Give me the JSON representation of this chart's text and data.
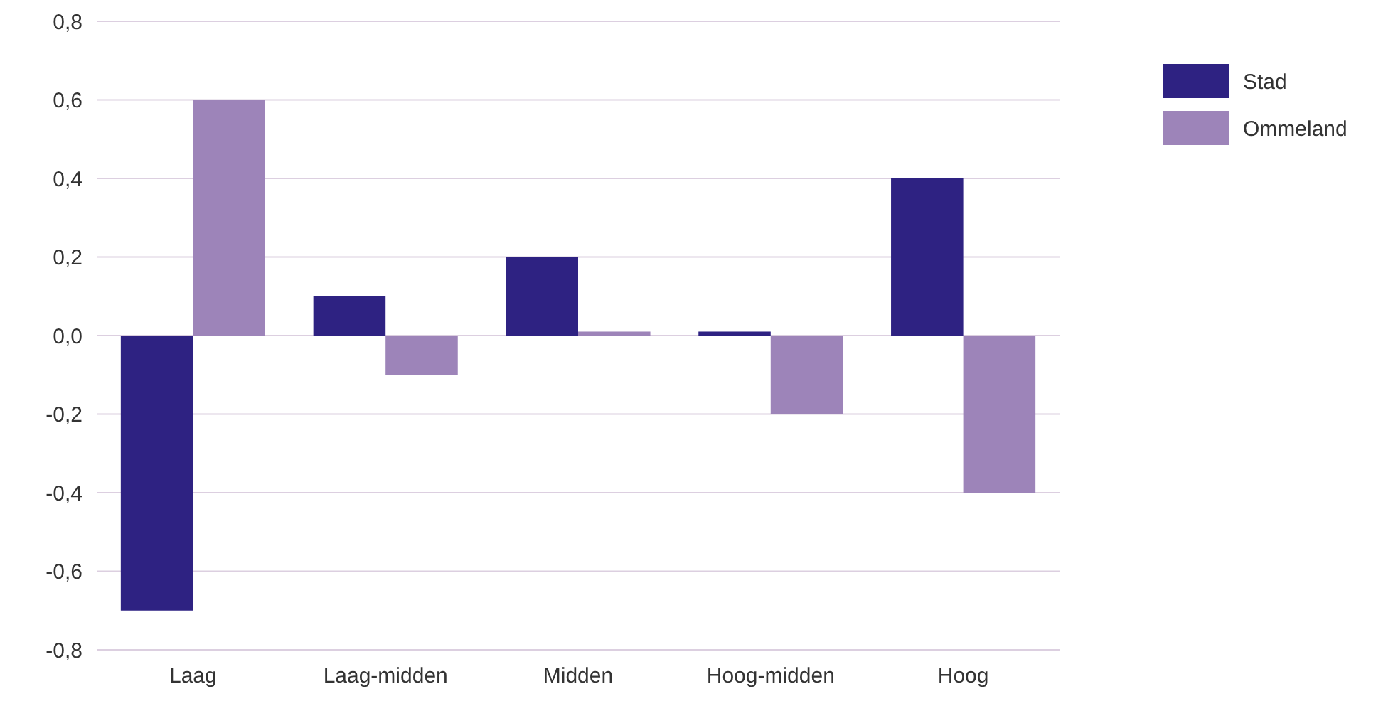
{
  "chart_data": {
    "type": "bar",
    "categories": [
      "Laag",
      "Laag-midden",
      "Midden",
      "Hoog-midden",
      "Hoog"
    ],
    "series": [
      {
        "name": "Stad",
        "color": "#2e2282",
        "values": [
          -0.7,
          0.1,
          0.2,
          0.01,
          0.4
        ]
      },
      {
        "name": "Ommeland",
        "color": "#9d84b9",
        "values": [
          0.6,
          -0.1,
          0.01,
          -0.2,
          -0.4
        ]
      }
    ],
    "ylim": [
      -0.8,
      0.8
    ],
    "yticks": [
      {
        "value": -0.8,
        "label": "-0,8"
      },
      {
        "value": -0.6,
        "label": "-0,6"
      },
      {
        "value": -0.4,
        "label": "-0,4"
      },
      {
        "value": -0.2,
        "label": "-0,2"
      },
      {
        "value": 0,
        "label": "0,0"
      },
      {
        "value": 0.2,
        "label": "0,2"
      },
      {
        "value": 0.4,
        "label": "0,4"
      },
      {
        "value": 0.6,
        "label": "0,6"
      },
      {
        "value": 0.8,
        "label": "0,8"
      }
    ],
    "grid": "y",
    "legend": "top right"
  }
}
